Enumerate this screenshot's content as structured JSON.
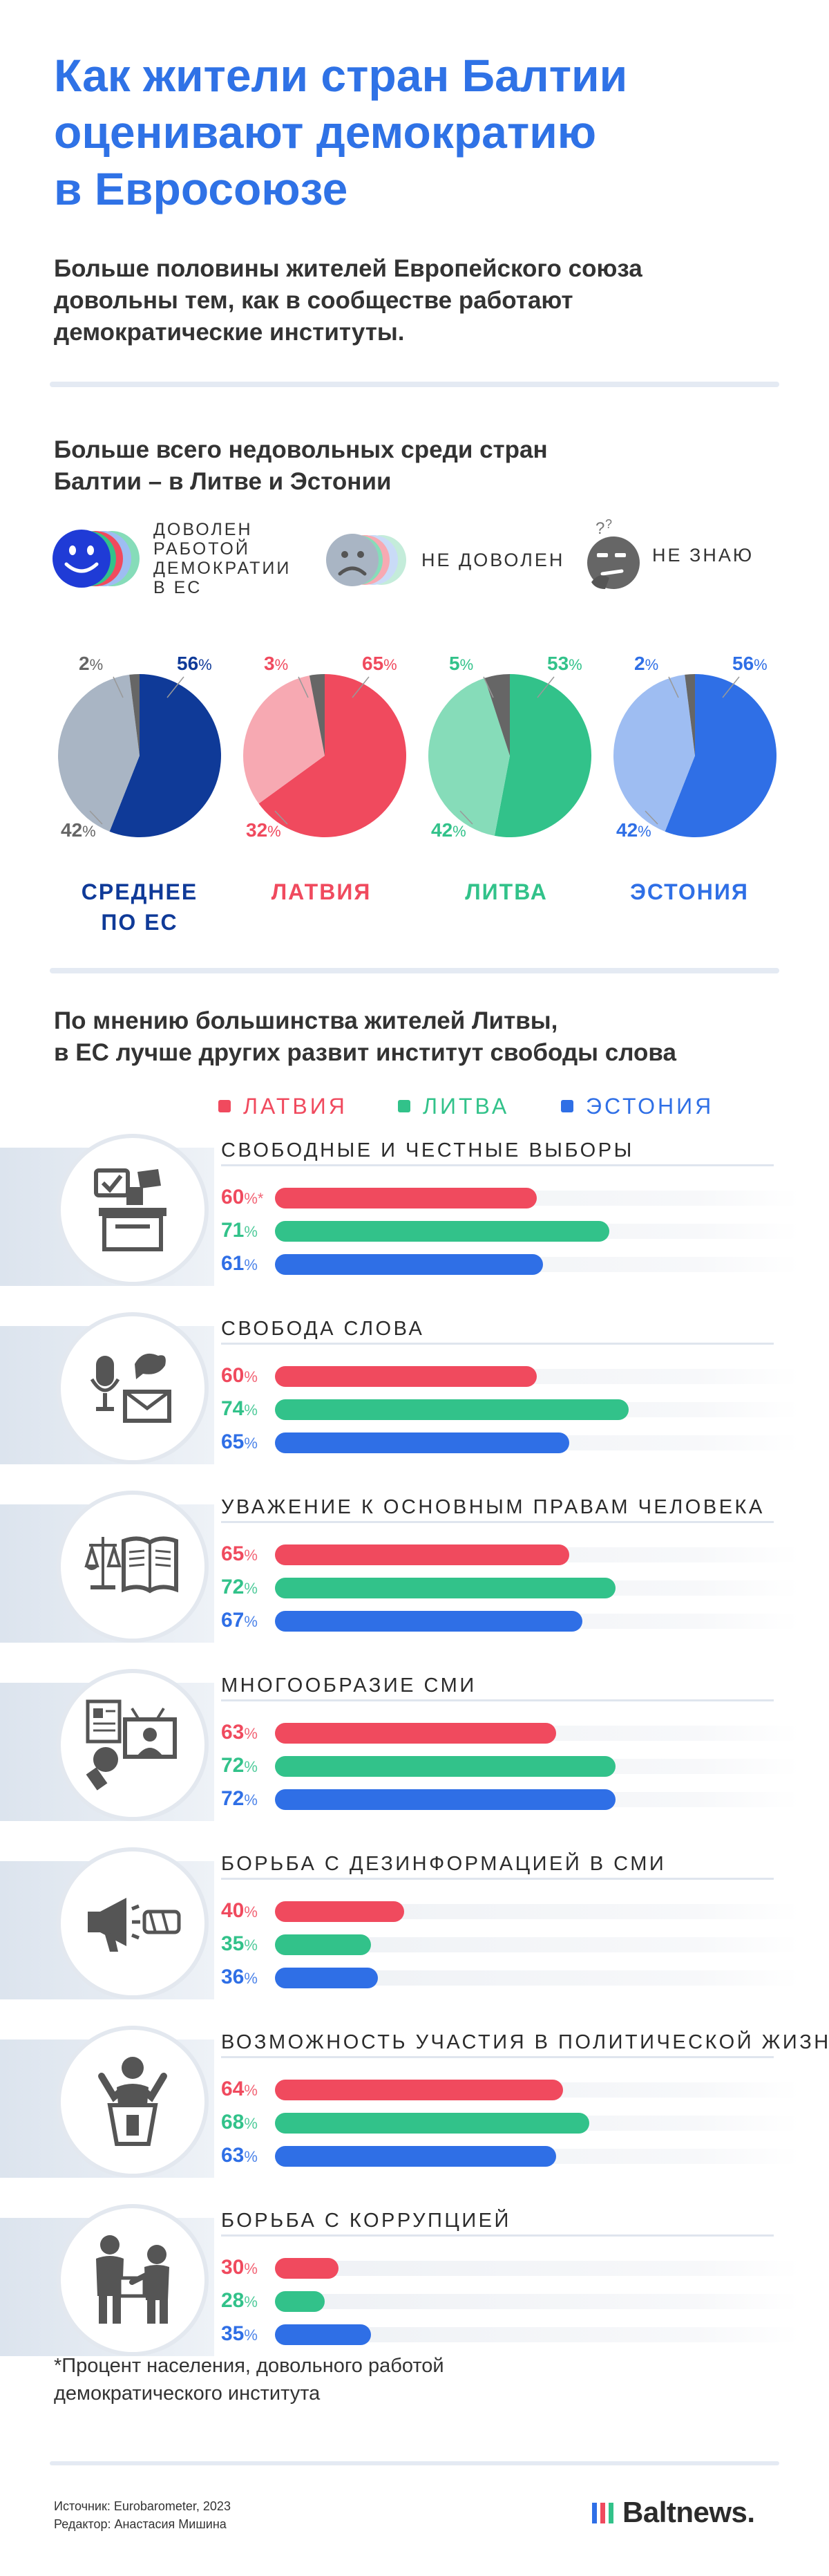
{
  "title_lines": [
    "Как жители стран Балтии",
    "оценивают демократию",
    "в Евросоюзе"
  ],
  "intro": [
    "Больше половины жителей Европейского союза",
    "довольны тем, как в сообществе работают",
    "демократические институты."
  ],
  "pie_section": {
    "heading": [
      "Больше всего недовольных среди стран",
      "Балтии – в Литве и Эстонии"
    ],
    "legend": [
      {
        "label": [
          "ДОВОЛЕН",
          "РАБОТОЙ",
          "ДЕМОКРАТИИ",
          "В ЕС"
        ],
        "icon": "happy-face-icon"
      },
      {
        "label": [
          "НЕ ДОВОЛЕН"
        ],
        "icon": "sad-face-icon"
      },
      {
        "label": [
          "НЕ ЗНАЮ"
        ],
        "icon": "thinking-face-icon"
      }
    ]
  },
  "pie_labels": [
    {
      "name": [
        "СРЕДНЕЕ",
        "ПО ЕС"
      ],
      "color": "#0f3a98",
      "light": "#a9b5c4",
      "text_color": "#0f3a98"
    },
    {
      "name": [
        "ЛАТВИЯ"
      ],
      "color": "#f04a5e",
      "light": "#f7a9b2",
      "text_color": "#f04a5e"
    },
    {
      "name": [
        "ЛИТВА"
      ],
      "color": "#32c28a",
      "light": "#86dcb9",
      "text_color": "#32c28a"
    },
    {
      "name": [
        "ЭСТОНИЯ"
      ],
      "color": "#2f6fe6",
      "light": "#9ebdf2",
      "text_color": "#2f6fe6"
    }
  ],
  "bar_section": {
    "heading": [
      "По мнению большинства жителей Литвы,",
      "в ЕС лучше других развит институт свободы слова"
    ],
    "legend": [
      {
        "label": "ЛАТВИЯ",
        "color": "#f04a5e"
      },
      {
        "label": "ЛИТВА",
        "color": "#32c28a"
      },
      {
        "label": "ЭСТОНИЯ",
        "color": "#2f6fe6"
      }
    ]
  },
  "chart_data": [
    {
      "type": "pie",
      "title": "",
      "series": [
        {
          "name": "СРЕДНЕЕ ПО ЕС",
          "values": [
            56,
            42,
            2
          ],
          "labels": [
            "56%",
            "42%",
            "2%"
          ]
        },
        {
          "name": "ЛАТВИЯ",
          "values": [
            65,
            32,
            3
          ],
          "labels": [
            "65%",
            "32%",
            "3%"
          ]
        },
        {
          "name": "ЛИТВА",
          "values": [
            53,
            42,
            5
          ],
          "labels": [
            "53%",
            "42%",
            "5%"
          ]
        },
        {
          "name": "ЭСТОНИЯ",
          "values": [
            56,
            42,
            2
          ],
          "labels": [
            "56%",
            "42%",
            "2%"
          ]
        }
      ],
      "categories": [
        "ДОВОЛЕН РАБОТОЙ ДЕМОКРАТИИ В ЕС",
        "НЕ ДОВОЛЕН",
        "НЕ ЗНАЮ"
      ]
    },
    {
      "type": "bar",
      "categories": [
        "СВОБОДНЫЕ И ЧЕСТНЫЕ ВЫБОРЫ",
        "СВОБОДА СЛОВА",
        "УВАЖЕНИЕ К ОСНОВНЫМ ПРАВАМ ЧЕЛОВЕКА",
        "МНОГООБРАЗИЕ СМИ",
        "БОРЬБА С ДЕЗИНФОРМАЦИЕЙ В СМИ",
        "ВОЗМОЖНОСТЬ УЧАСТИЯ В ПОЛИТИЧЕСКОЙ ЖИЗНИ",
        "БОРЬБА С КОРРУПЦИЕЙ"
      ],
      "series": [
        {
          "name": "ЛАТВИЯ",
          "values": [
            60,
            60,
            65,
            63,
            40,
            64,
            30
          ]
        },
        {
          "name": "ЛИТВА",
          "values": [
            71,
            74,
            72,
            72,
            35,
            68,
            28
          ]
        },
        {
          "name": "ЭСТОНИЯ",
          "values": [
            61,
            65,
            67,
            72,
            36,
            63,
            35
          ]
        }
      ],
      "icons": [
        "ballot-box-icon",
        "speech-icon",
        "law-book-icon",
        "media-icon",
        "megaphone-icon",
        "speaker-podium-icon",
        "bribe-icon"
      ],
      "ylim": [
        0,
        100
      ]
    }
  ],
  "asterisk_mark": "*",
  "footnote": [
    "*Процент населения, довольного работой",
    "демократического института"
  ],
  "source": "Источник: Eurobarometer, 2023",
  "editor": "Редактор: Анастасия Мишина",
  "logo": "Baltnews."
}
